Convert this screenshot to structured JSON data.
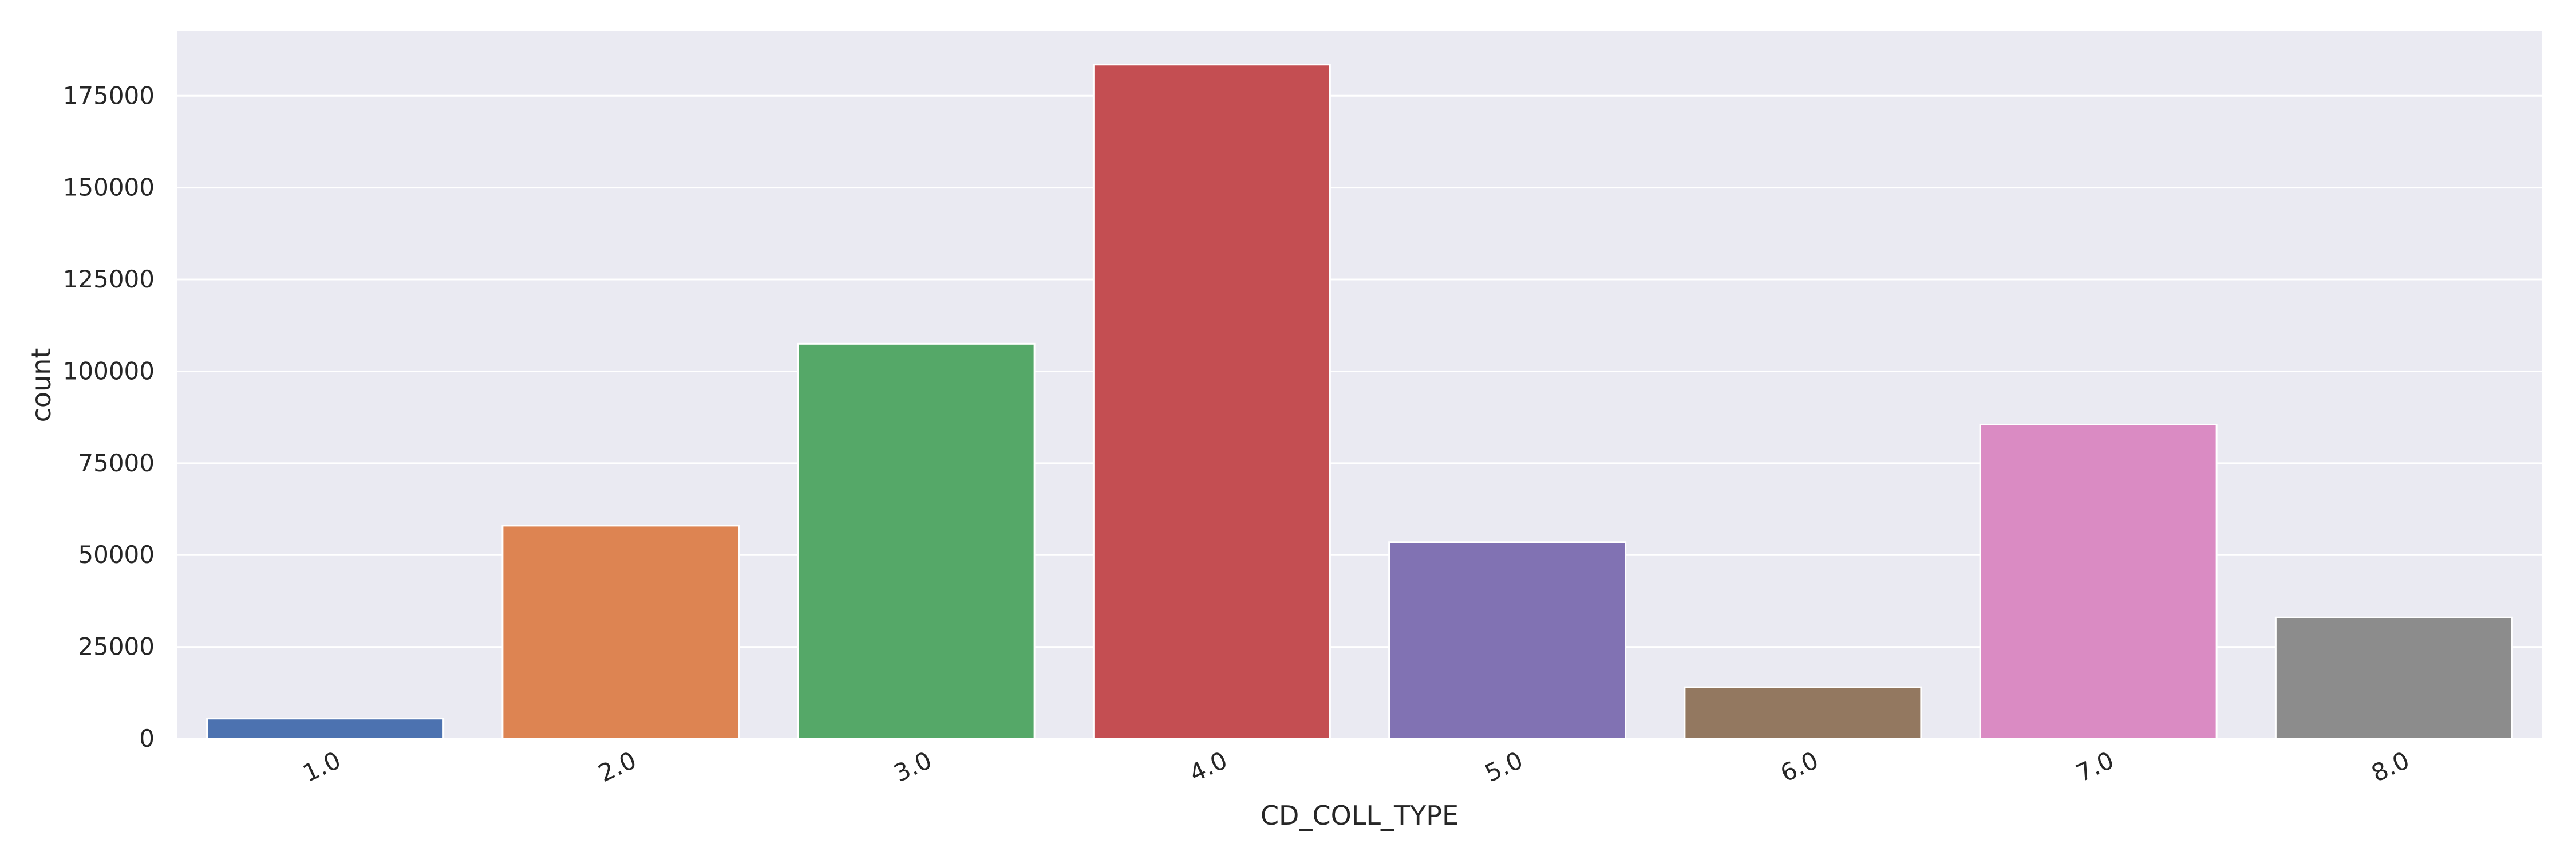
{
  "chart_data": {
    "type": "bar",
    "title": "",
    "xlabel": "CD_COLL_TYPE",
    "ylabel": "count",
    "categories": [
      "1.0",
      "2.0",
      "3.0",
      "4.0",
      "5.0",
      "6.0",
      "7.0",
      "8.0"
    ],
    "values": [
      5500,
      58000,
      107500,
      183500,
      53500,
      14000,
      85500,
      33000
    ],
    "ylim": [
      0,
      192500
    ],
    "yticks": [
      0,
      25000,
      50000,
      75000,
      100000,
      125000,
      150000,
      175000
    ],
    "grid": true,
    "legend": "none",
    "colors": [
      "#4c72b0",
      "#dd8452",
      "#55a868",
      "#c44e52",
      "#8172b3",
      "#937860",
      "#da8bc3",
      "#8c8c8c"
    ],
    "background": "#eaeaf2",
    "grid_color": "#ffffff",
    "x_tick_rotation_deg": -25
  }
}
